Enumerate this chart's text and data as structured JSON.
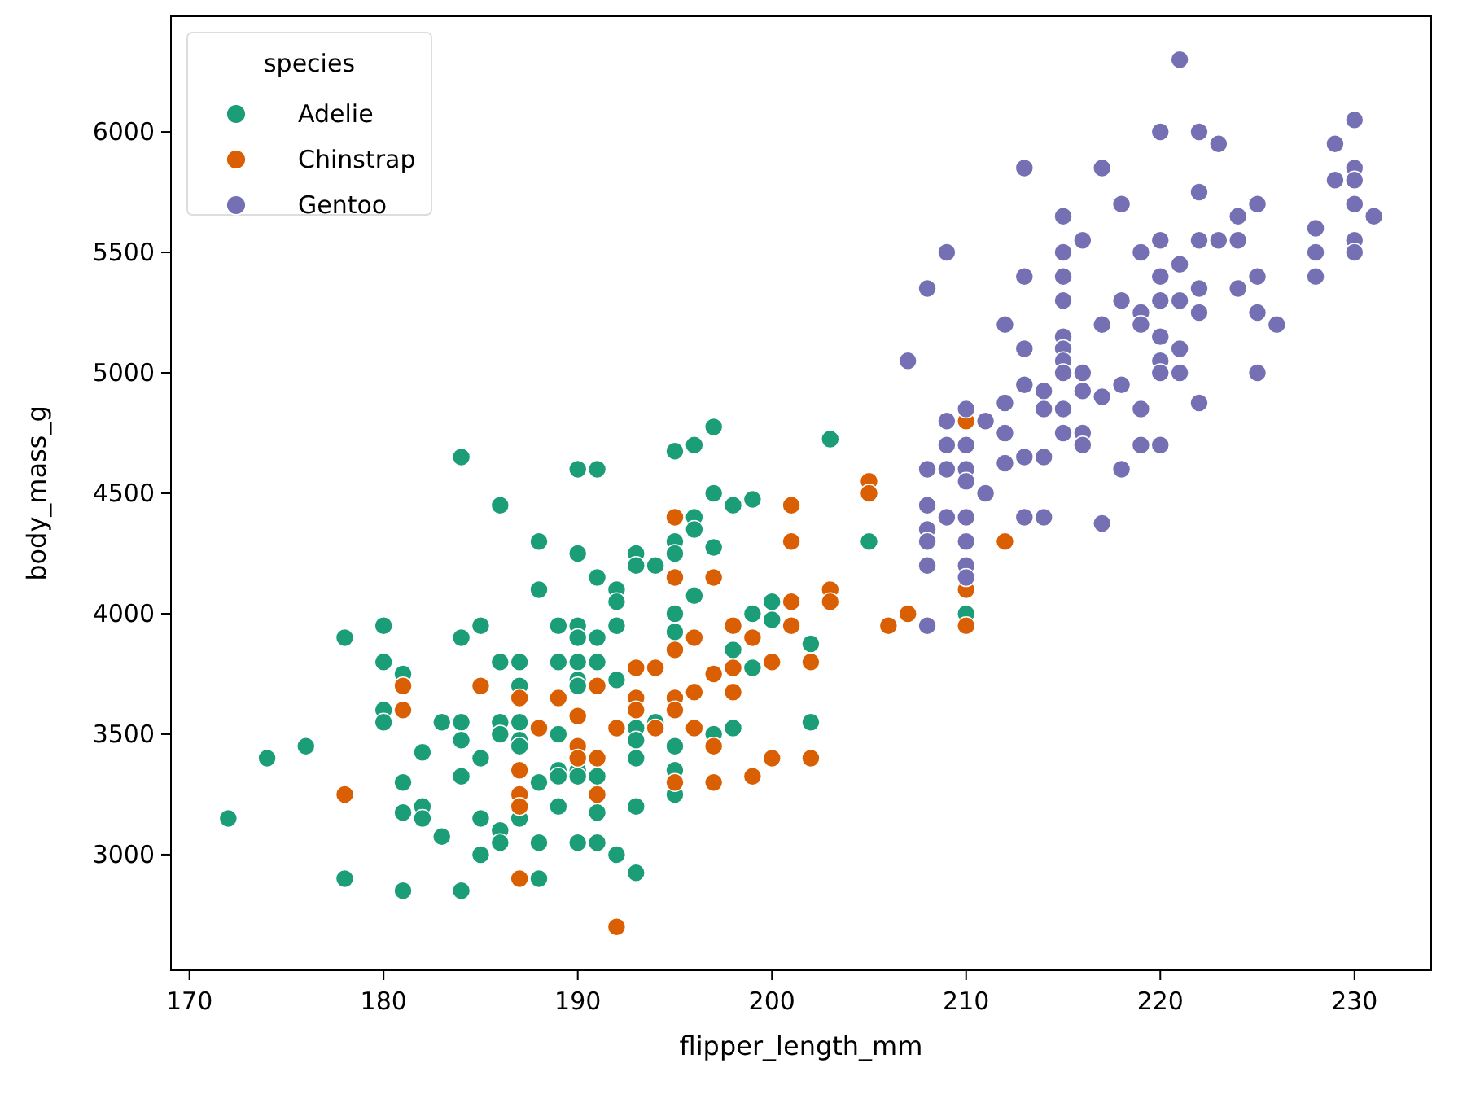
{
  "chart_data": {
    "type": "scatter",
    "xlabel": "flipper_length_mm",
    "ylabel": "body_mass_g",
    "legend_title": "species",
    "legend": "top left",
    "marker": "circle",
    "grid": false,
    "xlim": [
      169.05,
      233.95
    ],
    "ylim": [
      2520,
      6480
    ],
    "xticks": [
      170,
      180,
      190,
      200,
      210,
      220,
      230
    ],
    "yticks": [
      3000,
      3500,
      4000,
      4500,
      5000,
      5500,
      6000
    ],
    "series": [
      {
        "name": "Adelie",
        "color": "#1b9e77",
        "x": [
          184,
          186,
          188,
          188,
          190,
          191,
          190,
          178,
          180,
          180,
          181,
          180,
          180,
          174,
          176,
          172,
          178,
          181,
          181,
          182,
          182,
          182,
          183,
          183,
          181,
          184,
          184,
          185,
          184,
          184,
          185,
          184,
          185,
          185,
          186,
          187,
          186,
          186,
          186,
          186,
          187,
          187,
          187,
          187,
          187,
          188,
          188,
          188,
          189,
          190,
          189,
          190,
          190,
          190,
          189,
          189,
          190,
          189,
          190,
          197,
          195,
          196,
          203,
          197,
          198,
          199,
          196,
          196,
          193,
          193,
          194,
          195,
          195,
          197,
          191,
          192,
          192,
          192,
          191,
          191,
          190,
          192,
          193,
          193,
          193,
          195,
          195,
          196,
          199,
          200,
          200,
          198,
          199,
          202,
          197,
          198,
          202,
          195,
          195,
          195,
          194,
          189,
          190,
          191,
          191,
          193,
          191,
          192,
          193,
          205,
          210
        ],
        "values": [
          4650,
          4450,
          4300,
          4100,
          4600,
          4600,
          4250,
          3900,
          3950,
          3800,
          3750,
          3600,
          3550,
          3400,
          3450,
          3150,
          2900,
          3300,
          3175,
          3200,
          3150,
          3425,
          3550,
          3075,
          2850,
          2850,
          3900,
          3950,
          3550,
          3475,
          3400,
          3325,
          3150,
          3000,
          3800,
          3800,
          3550,
          3500,
          3100,
          3050,
          3700,
          3550,
          3475,
          3450,
          3150,
          3300,
          3050,
          2900,
          3950,
          3950,
          3800,
          3800,
          3900,
          3725,
          3500,
          3350,
          3350,
          3200,
          3050,
          4775,
          4675,
          4700,
          4725,
          4500,
          4450,
          4475,
          4400,
          4350,
          4250,
          4200,
          4200,
          4300,
          4250,
          4275,
          4150,
          4100,
          4050,
          3950,
          3900,
          3800,
          3700,
          3725,
          3525,
          3475,
          3400,
          4000,
          3925,
          4075,
          4000,
          4050,
          3975,
          3850,
          3775,
          3875,
          3500,
          3525,
          3550,
          3450,
          3350,
          3250,
          3550,
          3325,
          3325,
          3325,
          3175,
          3200,
          3050,
          3000,
          2925,
          4300,
          4000
        ]
      },
      {
        "name": "Chinstrap",
        "color": "#d95f02",
        "x": [
          178,
          181,
          181,
          185,
          187,
          187,
          187,
          187,
          187,
          188,
          189,
          190,
          190,
          190,
          195,
          201,
          201,
          205,
          205,
          203,
          203,
          206,
          207,
          195,
          197,
          198,
          199,
          201,
          201,
          196,
          195,
          200,
          202,
          193,
          194,
          191,
          192,
          193,
          193,
          194,
          195,
          195,
          196,
          196,
          197,
          198,
          198,
          197,
          191,
          191,
          195,
          197,
          199,
          200,
          202,
          192,
          210,
          212,
          210,
          210
        ],
        "values": [
          3250,
          3700,
          3600,
          3700,
          3650,
          3350,
          3250,
          3200,
          2900,
          3525,
          3650,
          3575,
          3450,
          3400,
          4400,
          4450,
          4300,
          4550,
          4500,
          4100,
          4050,
          3950,
          4000,
          4150,
          4150,
          3950,
          3900,
          4050,
          3950,
          3900,
          3850,
          3800,
          3800,
          3775,
          3775,
          3700,
          3525,
          3650,
          3600,
          3525,
          3650,
          3600,
          3675,
          3525,
          3750,
          3775,
          3675,
          3450,
          3400,
          3250,
          3300,
          3300,
          3325,
          3400,
          3400,
          2700,
          4800,
          4300,
          4100,
          3950
        ]
      },
      {
        "name": "Gentoo",
        "color": "#7570b3",
        "x": [
          221,
          220,
          222,
          223,
          230,
          229,
          230,
          229,
          230,
          230,
          231,
          230,
          230,
          228,
          228,
          228,
          213,
          217,
          218,
          222,
          224,
          225,
          215,
          216,
          215,
          215,
          215,
          219,
          220,
          221,
          222,
          223,
          224,
          220,
          220,
          221,
          222,
          224,
          225,
          213,
          209,
          208,
          218,
          219,
          219,
          222,
          225,
          226,
          217,
          212,
          215,
          215,
          215,
          215,
          213,
          207,
          216,
          220,
          221,
          220,
          220,
          221,
          225,
          213,
          214,
          216,
          217,
          218,
          212,
          214,
          215,
          219,
          222,
          209,
          210,
          211,
          209,
          210,
          212,
          215,
          216,
          216,
          219,
          220,
          208,
          209,
          210,
          212,
          213,
          214,
          218,
          210,
          211,
          208,
          209,
          210,
          208,
          213,
          214,
          217,
          208,
          210,
          208,
          210,
          210,
          208
        ],
        "values": [
          6300,
          6000,
          6000,
          5950,
          6050,
          5950,
          5850,
          5800,
          5800,
          5700,
          5650,
          5550,
          5500,
          5600,
          5500,
          5400,
          5850,
          5850,
          5700,
          5750,
          5650,
          5700,
          5650,
          5550,
          5500,
          5400,
          5300,
          5500,
          5550,
          5450,
          5550,
          5550,
          5550,
          5400,
          5300,
          5300,
          5350,
          5350,
          5400,
          5400,
          5500,
          5350,
          5300,
          5250,
          5200,
          5250,
          5250,
          5200,
          5200,
          5200,
          5150,
          5100,
          5050,
          5000,
          5100,
          5050,
          5000,
          5150,
          5100,
          5050,
          5000,
          5000,
          5000,
          4950,
          4925,
          4925,
          4900,
          4950,
          4875,
          4850,
          4850,
          4850,
          4875,
          4800,
          4850,
          4800,
          4700,
          4700,
          4750,
          4750,
          4750,
          4700,
          4700,
          4700,
          4600,
          4600,
          4600,
          4625,
          4650,
          4650,
          4600,
          4550,
          4500,
          4450,
          4400,
          4400,
          4350,
          4400,
          4400,
          4375,
          4300,
          4300,
          4200,
          4200,
          4150,
          3950
        ]
      }
    ]
  }
}
